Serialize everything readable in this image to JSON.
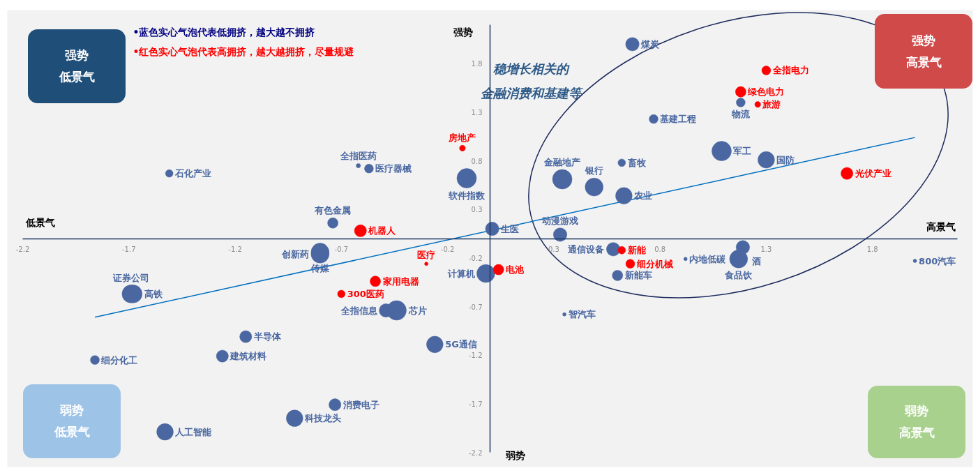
{
  "chart_data": {
    "type": "bubble",
    "xlim": [
      -2.2,
      2.2
    ],
    "ylim": [
      -2.2,
      2.2
    ],
    "xticks": [
      -2.2,
      -1.7,
      -1.2,
      -0.7,
      -0.2,
      0.3,
      0.8,
      1.3,
      1.8
    ],
    "yticks": [
      -2.2,
      -1.7,
      -1.2,
      -0.7,
      -0.2,
      0.3,
      0.8,
      1.3,
      1.8
    ],
    "grid": false,
    "annotations": [
      "•蓝色实心气泡代表低拥挤，越大越不拥挤",
      "•红色实心气泡代表高拥挤，越大越拥挤，尽量规避",
      "稳增长相关的",
      "金融消费和基建等",
      "强势",
      "低景气",
      "强势",
      "高景气",
      "弱势",
      "低景气",
      "弱势",
      "高景气",
      "强势",
      "弱势",
      "低景气",
      "高景气"
    ],
    "series": [
      {
        "type": "line",
        "color": "#0070c0",
        "x": [
          -1.86,
          2.0
        ],
        "values": [
          -0.81,
          1.04
        ]
      },
      {
        "name": "煤炭",
        "color": "#4a67a1",
        "x": [
          0.67
        ],
        "values": [
          2.0
        ],
        "sizes": [
          0.48
        ]
      },
      {
        "name": "石化产业",
        "color": "#4a67a1",
        "x": [
          -1.51
        ],
        "values": [
          0.67
        ],
        "sizes": [
          0.15
        ]
      },
      {
        "name": "全指医药",
        "color": "#4a67a1",
        "x": [
          -0.62
        ],
        "values": [
          0.75
        ],
        "sizes": [
          0.05
        ]
      },
      {
        "name": "医疗器械",
        "color": "#4a67a1",
        "x": [
          -0.57
        ],
        "values": [
          0.72
        ],
        "sizes": [
          0.21
        ]
      },
      {
        "name": "软件指数",
        "color": "#4a67a1",
        "x": [
          -0.11
        ],
        "values": [
          0.62
        ],
        "sizes": [
          1
        ]
      },
      {
        "name": "有色金属",
        "color": "#4a67a1",
        "x": [
          -0.74
        ],
        "values": [
          0.16
        ],
        "sizes": [
          0.29
        ]
      },
      {
        "name": "生医",
        "color": "#4a67a1",
        "x": [
          0.01
        ],
        "values": [
          0.1
        ],
        "sizes": [
          0.48
        ]
      },
      {
        "name": "传媒",
        "color": "#4a67a1",
        "x": [
          -0.8
        ],
        "values": [
          -0.14
        ],
        "sizes": [
          0.85
        ]
      },
      {
        "name": "创新药",
        "color": "#4a67a1",
        "x": [
          -0.8
        ],
        "values": [
          -0.16
        ],
        "sizes": [
          0.85
        ]
      },
      {
        "name": "证券公司",
        "color": "#4a67a1",
        "x": [
          -1.69
        ],
        "values": [
          -0.57
        ],
        "sizes": [
          0.85
        ]
      },
      {
        "name": "高铁",
        "color": "#4a67a1",
        "x": [
          -1.68
        ],
        "values": [
          -0.57
        ],
        "sizes": [
          0.85
        ]
      },
      {
        "name": "全指信息",
        "color": "#4a67a1",
        "x": [
          -0.49
        ],
        "values": [
          -0.74
        ],
        "sizes": [
          0.48
        ]
      },
      {
        "name": "芯片",
        "color": "#4a67a1",
        "x": [
          -0.44
        ],
        "values": [
          -0.74
        ],
        "sizes": [
          1
        ]
      },
      {
        "name": "5G通信",
        "color": "#4a67a1",
        "x": [
          -0.26
        ],
        "values": [
          -1.09
        ],
        "sizes": [
          0.72
        ]
      },
      {
        "name": "半导体",
        "color": "#4a67a1",
        "x": [
          -1.15
        ],
        "values": [
          -1.01
        ],
        "sizes": [
          0.38
        ]
      },
      {
        "name": "建筑材料",
        "color": "#4a67a1",
        "x": [
          -1.26
        ],
        "values": [
          -1.21
        ],
        "sizes": [
          0.38
        ]
      },
      {
        "name": "细分化工",
        "color": "#4a67a1",
        "x": [
          -1.86
        ],
        "values": [
          -1.25
        ],
        "sizes": [
          0.21
        ]
      },
      {
        "name": "人工智能",
        "color": "#4a67a1",
        "x": [
          -1.53
        ],
        "values": [
          -1.99
        ],
        "sizes": [
          0.72
        ]
      },
      {
        "name": "科技龙头",
        "color": "#4a67a1",
        "x": [
          -0.92
        ],
        "values": [
          -1.85
        ],
        "sizes": [
          0.72
        ]
      },
      {
        "name": "消费电子",
        "color": "#4a67a1",
        "x": [
          -0.73
        ],
        "values": [
          -1.71
        ],
        "sizes": [
          0.38
        ]
      },
      {
        "name": "计算机",
        "color": "#4a67a1",
        "x": [
          -0.02
        ],
        "values": [
          -0.36
        ],
        "sizes": [
          0.85
        ]
      },
      {
        "name": "动漫游戏",
        "color": "#4a67a1",
        "x": [
          0.33
        ],
        "values": [
          0.04
        ],
        "sizes": [
          0.48
        ]
      },
      {
        "name": "通信设备",
        "color": "#4a67a1",
        "x": [
          0.58
        ],
        "values": [
          -0.11
        ],
        "sizes": [
          0.48
        ]
      },
      {
        "name": "新能车",
        "color": "#4a67a1",
        "x": [
          0.6
        ],
        "values": [
          -0.38
        ],
        "sizes": [
          0.29
        ]
      },
      {
        "name": "智汽车",
        "color": "#4a67a1",
        "x": [
          0.35
        ],
        "values": [
          -0.78
        ],
        "type": "scatter"
      },
      {
        "name": "内地低碳",
        "color": "#4a67a1",
        "x": [
          0.92
        ],
        "values": [
          -0.21
        ],
        "type": "scatter"
      },
      {
        "name": "酒",
        "color": "#4a67a1",
        "x": [
          1.19
        ],
        "values": [
          -0.09
        ],
        "sizes": [
          0.48
        ]
      },
      {
        "name": "食品饮",
        "color": "#4a67a1",
        "x": [
          1.17
        ],
        "values": [
          -0.21
        ],
        "sizes": [
          0.85
        ]
      },
      {
        "name": "800汽车",
        "color": "#4a67a1",
        "x": [
          2.0
        ],
        "values": [
          -0.23
        ],
        "type": "scatter"
      },
      {
        "name": "基建工程",
        "color": "#4a67a1",
        "x": [
          0.77
        ],
        "values": [
          1.23
        ],
        "sizes": [
          0.21
        ]
      },
      {
        "name": "物流",
        "color": "#4a67a1",
        "x": [
          1.18
        ],
        "values": [
          1.4
        ],
        "sizes": [
          0.21
        ]
      },
      {
        "name": "军工",
        "color": "#4a67a1",
        "x": [
          1.09
        ],
        "values": [
          0.9
        ],
        "sizes": [
          1
        ]
      },
      {
        "name": "国防",
        "color": "#4a67a1",
        "x": [
          1.3
        ],
        "values": [
          0.81
        ],
        "sizes": [
          0.72
        ]
      },
      {
        "name": "畜牧",
        "color": "#4a67a1",
        "x": [
          0.62
        ],
        "values": [
          0.78
        ],
        "sizes": [
          0.15
        ]
      },
      {
        "name": "金融地产",
        "color": "#4a67a1",
        "x": [
          0.34
        ],
        "values": [
          0.61
        ],
        "sizes": [
          1
        ]
      },
      {
        "name": "银行",
        "color": "#4a67a1",
        "x": [
          0.49
        ],
        "values": [
          0.53
        ],
        "sizes": [
          0.85
        ]
      },
      {
        "name": "农业",
        "color": "#4a67a1",
        "x": [
          0.63
        ],
        "values": [
          0.44
        ],
        "sizes": [
          0.72
        ]
      },
      {
        "name": "全指电力",
        "color": "#ff0000",
        "x": [
          1.3
        ],
        "values": [
          1.73
        ],
        "sizes": [
          0.21
        ]
      },
      {
        "name": "绿色电力",
        "color": "#ff0000",
        "x": [
          1.18
        ],
        "values": [
          1.51
        ],
        "sizes": [
          0.29
        ]
      },
      {
        "name": "旅游",
        "color": "#ff0000",
        "x": [
          1.26
        ],
        "values": [
          1.38
        ],
        "sizes": [
          0.09
        ]
      },
      {
        "name": "光伏产业",
        "color": "#ff0000",
        "x": [
          1.68
        ],
        "values": [
          0.67
        ],
        "sizes": [
          0.38
        ]
      },
      {
        "name": "房地产",
        "color": "#ff0000",
        "x": [
          -0.13
        ],
        "values": [
          0.93
        ],
        "sizes": [
          0.09
        ]
      },
      {
        "name": "机器人",
        "color": "#ff0000",
        "x": [
          -0.61
        ],
        "values": [
          0.08
        ],
        "sizes": [
          0.38
        ]
      },
      {
        "name": "医疗",
        "color": "#ff0000",
        "x": [
          -0.3
        ],
        "values": [
          -0.26
        ],
        "type": "scatter"
      },
      {
        "name": "家用电器",
        "color": "#ff0000",
        "x": [
          -0.54
        ],
        "values": [
          -0.44
        ],
        "sizes": [
          0.29
        ]
      },
      {
        "name": "300医药",
        "color": "#ff0000",
        "x": [
          -0.7
        ],
        "values": [
          -0.57
        ],
        "sizes": [
          0.15
        ]
      },
      {
        "name": "电池",
        "color": "#ff0000",
        "x": [
          0.04
        ],
        "values": [
          -0.32
        ],
        "sizes": [
          0.29
        ]
      },
      {
        "name": "新能",
        "color": "#ff0000",
        "x": [
          0.62
        ],
        "values": [
          -0.12
        ],
        "sizes": [
          0.15
        ]
      },
      {
        "name": "细分机械",
        "color": "#ff0000",
        "x": [
          0.66
        ],
        "values": [
          -0.26
        ],
        "sizes": [
          0.21
        ]
      }
    ]
  }
}
